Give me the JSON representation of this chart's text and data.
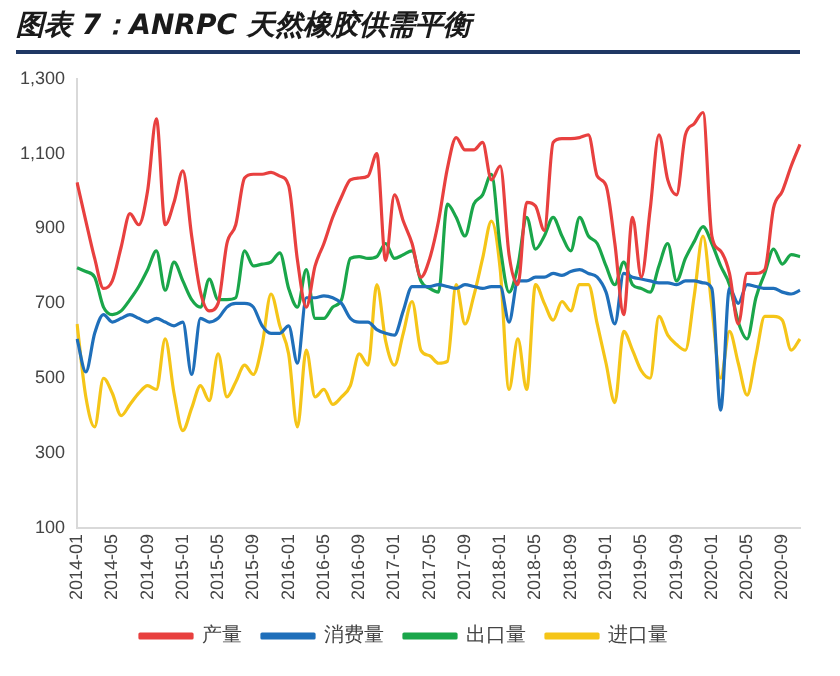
{
  "chart_data": {
    "type": "line",
    "title": "图表 7：ANRPC 天然橡胶供需平衡",
    "categories": [
      "2014-01",
      null,
      null,
      null,
      "2014-05",
      null,
      null,
      null,
      "2014-09",
      null,
      null,
      null,
      "2015-01",
      null,
      null,
      null,
      "2015-05",
      null,
      null,
      null,
      "2015-09",
      null,
      null,
      null,
      "2016-01",
      null,
      null,
      null,
      "2016-05",
      null,
      null,
      null,
      "2016-09",
      null,
      null,
      null,
      "2017-01",
      null,
      null,
      null,
      "2017-05",
      null,
      null,
      null,
      "2017-09",
      null,
      null,
      null,
      "2018-01",
      null,
      null,
      null,
      "2018-05",
      null,
      null,
      null,
      "2018-09",
      null,
      null,
      null,
      "2019-01",
      null,
      null,
      null,
      "2019-05",
      null,
      null,
      null,
      "2019-09",
      null,
      null,
      null,
      "2020-01",
      null,
      null,
      null,
      "2020-05",
      null,
      null,
      null,
      "2020-09",
      null,
      null
    ],
    "series": [
      {
        "name": "产量",
        "color": "#e8403f",
        "values": [
          1023,
          920,
          820,
          740,
          760,
          850,
          940,
          910,
          1000,
          1193,
          910,
          970,
          1054,
          880,
          730,
          680,
          700,
          860,
          910,
          1035,
          1045,
          1045,
          1050,
          1040,
          1015,
          815,
          690,
          800,
          860,
          930,
          985,
          1030,
          1035,
          1040,
          1100,
          815,
          990,
          920,
          860,
          770,
          820,
          920,
          1060,
          1143,
          1110,
          1110,
          1130,
          1030,
          1067,
          830,
          750,
          970,
          960,
          895,
          1130,
          1140,
          1140,
          1143,
          1150,
          1040,
          1015,
          860,
          670,
          930,
          770,
          950,
          1150,
          1030,
          990,
          1150,
          1180,
          1210,
          880,
          840,
          780,
          645,
          780,
          780,
          790,
          955,
          1000,
          1067,
          1125
        ]
      },
      {
        "name": "消费量",
        "color": "#1f6fba",
        "values": [
          605,
          517,
          620,
          670,
          650,
          660,
          670,
          660,
          650,
          660,
          650,
          640,
          650,
          510,
          660,
          650,
          660,
          690,
          700,
          700,
          690,
          640,
          620,
          620,
          640,
          540,
          715,
          715,
          720,
          715,
          700,
          660,
          650,
          650,
          630,
          620,
          615,
          680,
          745,
          745,
          745,
          750,
          745,
          740,
          750,
          745,
          740,
          745,
          745,
          650,
          760,
          760,
          770,
          770,
          780,
          775,
          785,
          790,
          780,
          770,
          730,
          645,
          780,
          770,
          765,
          760,
          755,
          755,
          750,
          760,
          760,
          755,
          740,
          415,
          740,
          700,
          750,
          745,
          740,
          740,
          730,
          725,
          735
        ]
      },
      {
        "name": "出口量",
        "color": "#1aa64a",
        "values": [
          795,
          785,
          770,
          690,
          670,
          680,
          710,
          745,
          790,
          840,
          735,
          810,
          760,
          710,
          690,
          765,
          710,
          710,
          715,
          840,
          800,
          805,
          810,
          835,
          740,
          690,
          790,
          660,
          660,
          690,
          710,
          820,
          825,
          820,
          825,
          860,
          820,
          830,
          840,
          760,
          740,
          730,
          965,
          930,
          880,
          965,
          990,
          1045,
          850,
          730,
          800,
          930,
          845,
          880,
          930,
          880,
          840,
          930,
          880,
          860,
          800,
          750,
          810,
          750,
          740,
          730,
          800,
          860,
          760,
          820,
          865,
          905,
          860,
          800,
          750,
          650,
          605,
          715,
          780,
          845,
          805,
          830,
          825
        ]
      },
      {
        "name": "进口量",
        "color": "#f5c518",
        "values": [
          645,
          450,
          370,
          500,
          460,
          400,
          430,
          460,
          480,
          470,
          605,
          460,
          360,
          420,
          480,
          440,
          565,
          450,
          490,
          535,
          510,
          590,
          725,
          640,
          565,
          370,
          575,
          450,
          470,
          430,
          450,
          480,
          565,
          535,
          750,
          600,
          535,
          620,
          705,
          575,
          560,
          540,
          545,
          750,
          645,
          720,
          820,
          920,
          790,
          470,
          605,
          470,
          750,
          700,
          655,
          705,
          680,
          750,
          750,
          645,
          540,
          435,
          625,
          575,
          520,
          500,
          665,
          615,
          590,
          575,
          720,
          880,
          690,
          500,
          625,
          540,
          455,
          560,
          665,
          665,
          655,
          575,
          605
        ]
      }
    ],
    "ylim": [
      100,
      1300
    ],
    "yticks": [
      100,
      300,
      500,
      700,
      900,
      {
        "value": 1100,
        "label": "1,100"
      },
      {
        "value": 1300,
        "label": "1,300"
      }
    ],
    "grid": false,
    "legend": "bottom",
    "marker": "none",
    "line_style": "solid"
  }
}
